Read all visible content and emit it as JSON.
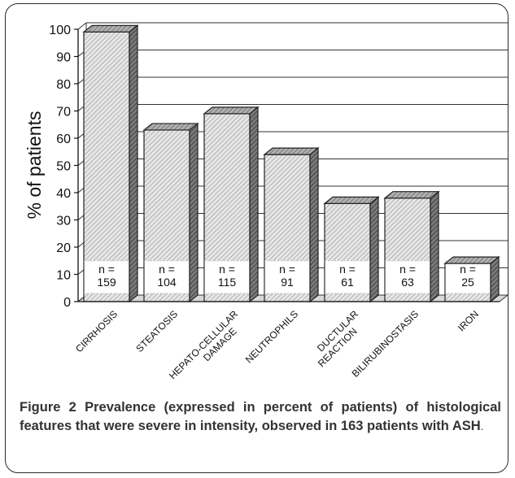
{
  "chart_data": {
    "type": "bar",
    "categories": [
      [
        "CIRRHOSIS"
      ],
      [
        "STEATOSIS"
      ],
      [
        "HEPATO-CELLULAR",
        "DAMAGE"
      ],
      [
        "NEUTROPHILS"
      ],
      [
        "DUCTULAR",
        "REACTION"
      ],
      [
        "BILIRUBINOSTASIS"
      ],
      [
        "IRON"
      ]
    ],
    "values": [
      99,
      63,
      69,
      54,
      36,
      38,
      14
    ],
    "n_labels": [
      "n =\n159",
      "n =\n104",
      "n =\n115",
      "n =\n91",
      "n =\n61",
      "n =\n63",
      "n =\n25"
    ],
    "ylabel": "% of patients",
    "ylim": [
      0,
      100
    ],
    "yticks": [
      0,
      10,
      20,
      30,
      40,
      50,
      60,
      70,
      80,
      90,
      100
    ],
    "grid": true,
    "style": "3d-hatched"
  },
  "caption": {
    "label": "Figure 2",
    "text": " Prevalence (expressed in percent of patients) of histological features that were severe in intensity, observed in 163 patients with ASH",
    "end": "."
  }
}
